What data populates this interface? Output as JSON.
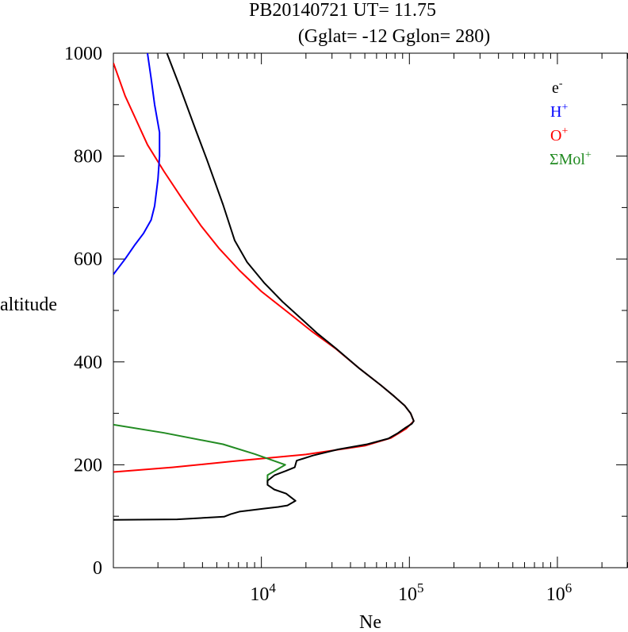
{
  "chart_data": {
    "type": "line",
    "title": "PB20140721   UT=  11.75",
    "subtitle": "(Gglat= -12   Gglon=  280)",
    "xlabel": "Ne",
    "ylabel": "altitude",
    "x_scale": "log",
    "xlim": [
      1000,
      3000000
    ],
    "ylim": [
      0,
      1000
    ],
    "y_ticks": [
      0,
      200,
      400,
      600,
      800,
      1000
    ],
    "x_tick_labels": [
      {
        "value": 10000,
        "base": "10",
        "exp": "4"
      },
      {
        "value": 100000,
        "base": "10",
        "exp": "5"
      },
      {
        "value": 1000000,
        "base": "10",
        "exp": "6"
      }
    ],
    "grid": false,
    "legend_position": "top-right",
    "series": [
      {
        "name": "e-",
        "label_base": "e",
        "label_sup": "-",
        "color": "#000000",
        "points": [
          [
            1000,
            93
          ],
          [
            2700,
            94
          ],
          [
            5600,
            99
          ],
          [
            6200,
            104
          ],
          [
            7100,
            109
          ],
          [
            8700,
            112
          ],
          [
            10500,
            115
          ],
          [
            13000,
            118
          ],
          [
            15000,
            121
          ],
          [
            17000,
            130
          ],
          [
            14700,
            144
          ],
          [
            12200,
            152
          ],
          [
            11000,
            161
          ],
          [
            11000,
            169
          ],
          [
            12300,
            180
          ],
          [
            14600,
            188
          ],
          [
            16800,
            195
          ],
          [
            17300,
            208
          ],
          [
            22300,
            218
          ],
          [
            33000,
            230
          ],
          [
            52000,
            240
          ],
          [
            72000,
            251
          ],
          [
            83000,
            261
          ],
          [
            93000,
            271
          ],
          [
            104000,
            280
          ],
          [
            107000,
            285
          ],
          [
            102000,
            300
          ],
          [
            93000,
            315
          ],
          [
            79000,
            333
          ],
          [
            64000,
            355
          ],
          [
            46000,
            387
          ],
          [
            32000,
            426
          ],
          [
            24000,
            455
          ],
          [
            18100,
            487
          ],
          [
            13900,
            517
          ],
          [
            10500,
            553
          ],
          [
            8000,
            594
          ],
          [
            6600,
            636
          ],
          [
            5500,
            706
          ],
          [
            4300,
            792
          ],
          [
            3600,
            851
          ],
          [
            2800,
            936
          ],
          [
            2300,
            1000
          ]
        ]
      },
      {
        "name": "H+",
        "label_base": "H",
        "label_sup": "+",
        "color": "#0000ff",
        "points": [
          [
            1000,
            570
          ],
          [
            1200,
            600
          ],
          [
            1400,
            628
          ],
          [
            1600,
            650
          ],
          [
            1800,
            676
          ],
          [
            1900,
            703
          ],
          [
            2000,
            755
          ],
          [
            2050,
            800
          ],
          [
            2050,
            846
          ],
          [
            1900,
            900
          ],
          [
            1800,
            951
          ],
          [
            1700,
            1000
          ]
        ]
      },
      {
        "name": "O+",
        "label_base": "O",
        "label_sup": "+",
        "color": "#ff0000",
        "points": [
          [
            1000,
            186
          ],
          [
            2500,
            195
          ],
          [
            6500,
            207
          ],
          [
            20000,
            220
          ],
          [
            50000,
            237
          ],
          [
            75000,
            252
          ],
          [
            95000,
            270
          ],
          [
            107000,
            285
          ],
          [
            102000,
            300
          ],
          [
            93000,
            315
          ],
          [
            79000,
            333
          ],
          [
            64000,
            355
          ],
          [
            46000,
            387
          ],
          [
            32000,
            425
          ],
          [
            22000,
            459
          ],
          [
            15000,
            497
          ],
          [
            10000,
            537
          ],
          [
            7100,
            578
          ],
          [
            5200,
            620
          ],
          [
            3900,
            665
          ],
          [
            2900,
            718
          ],
          [
            2200,
            770
          ],
          [
            1700,
            822
          ],
          [
            1400,
            875
          ],
          [
            1200,
            917
          ],
          [
            1000,
            981
          ]
        ]
      },
      {
        "name": "ΣMol+",
        "label_base": "ΣMol",
        "label_sup": "+",
        "color": "#228b22",
        "points": [
          [
            1000,
            278
          ],
          [
            2200,
            262
          ],
          [
            5500,
            240
          ],
          [
            9000,
            221
          ],
          [
            14500,
            200
          ],
          [
            11000,
            180
          ],
          [
            11000,
            165
          ]
        ]
      }
    ]
  }
}
